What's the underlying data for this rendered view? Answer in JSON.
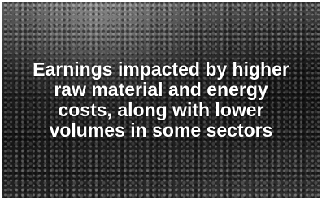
{
  "caption": {
    "lines": [
      "Earnings impacted by higher",
      "raw material and energy",
      "costs, along with lower",
      "volumes in some sectors"
    ]
  }
}
